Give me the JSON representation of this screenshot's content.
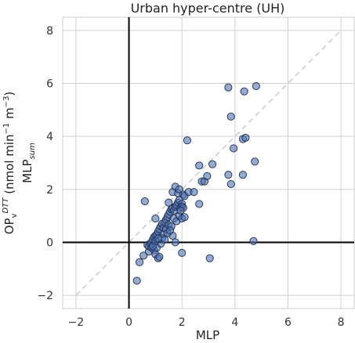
{
  "chart_data": {
    "type": "scatter",
    "title": "Urban hyper-centre (UH)",
    "xlabel": "MLP",
    "ylabel": {
      "line1_base": "OP",
      "line1_sub": "v",
      "line1_sup": "DTT",
      "line1_units": " (nmol min",
      "line1_units_sup": "−1",
      "line1_units_mid": " m",
      "line1_units_sup2": "−3",
      "line1_units_end": ")",
      "line2_base": "MLP",
      "line2_sub": "sum"
    },
    "xlim": [
      -2.5,
      8.5
    ],
    "ylim": [
      -2.5,
      8.5
    ],
    "xticks": [
      -2,
      0,
      2,
      4,
      6,
      8
    ],
    "yticks": [
      -2,
      0,
      2,
      4,
      6,
      8
    ],
    "grid": true,
    "reference_lines": {
      "x_zero": true,
      "y_zero": true,
      "identity_dashed": [
        -2,
        8
      ]
    },
    "colors": {
      "marker_fill": "#4c72b0",
      "marker_edge": "#1f2d4d",
      "grid": "#d0d0d0",
      "identity": "#cccccc",
      "axes": "#000000",
      "frame": "#cccccc"
    },
    "points": [
      {
        "x": 0.3,
        "y": -1.45
      },
      {
        "x": 0.4,
        "y": -0.75
      },
      {
        "x": 0.55,
        "y": -0.5
      },
      {
        "x": 0.75,
        "y": -0.35
      },
      {
        "x": 0.6,
        "y": 1.55
      },
      {
        "x": 1.0,
        "y": 0.9
      },
      {
        "x": 0.7,
        "y": -0.1
      },
      {
        "x": 0.75,
        "y": -0.15
      },
      {
        "x": 0.8,
        "y": -0.05
      },
      {
        "x": 0.85,
        "y": 0.0
      },
      {
        "x": 0.9,
        "y": 0.1
      },
      {
        "x": 0.95,
        "y": 0.2
      },
      {
        "x": 1.0,
        "y": 0.25
      },
      {
        "x": 1.05,
        "y": 0.3
      },
      {
        "x": 0.85,
        "y": -0.2
      },
      {
        "x": 0.95,
        "y": -0.3
      },
      {
        "x": 1.0,
        "y": -0.45
      },
      {
        "x": 1.1,
        "y": -0.6
      },
      {
        "x": 1.15,
        "y": -0.55
      },
      {
        "x": 1.05,
        "y": -0.2
      },
      {
        "x": 1.1,
        "y": 0.4
      },
      {
        "x": 1.15,
        "y": 0.5
      },
      {
        "x": 1.2,
        "y": 0.6
      },
      {
        "x": 1.25,
        "y": 0.7
      },
      {
        "x": 1.3,
        "y": 0.55
      },
      {
        "x": 1.35,
        "y": 0.75
      },
      {
        "x": 1.4,
        "y": 0.85
      },
      {
        "x": 1.45,
        "y": 0.95
      },
      {
        "x": 1.5,
        "y": 1.05
      },
      {
        "x": 1.55,
        "y": 1.15
      },
      {
        "x": 1.6,
        "y": 1.25
      },
      {
        "x": 1.65,
        "y": 1.3
      },
      {
        "x": 1.7,
        "y": 1.2
      },
      {
        "x": 1.75,
        "y": 1.35
      },
      {
        "x": 1.8,
        "y": 1.4
      },
      {
        "x": 1.85,
        "y": 1.5
      },
      {
        "x": 1.9,
        "y": 1.6
      },
      {
        "x": 1.95,
        "y": 1.3
      },
      {
        "x": 2.0,
        "y": 1.45
      },
      {
        "x": 1.7,
        "y": 0.9
      },
      {
        "x": 1.8,
        "y": 0.8
      },
      {
        "x": 1.9,
        "y": 1.0
      },
      {
        "x": 2.0,
        "y": 0.9
      },
      {
        "x": 2.1,
        "y": 0.95
      },
      {
        "x": 1.3,
        "y": 0.3
      },
      {
        "x": 1.4,
        "y": 0.5
      },
      {
        "x": 1.5,
        "y": 0.65
      },
      {
        "x": 1.25,
        "y": 0.15
      },
      {
        "x": 1.6,
        "y": 0.6
      },
      {
        "x": 1.65,
        "y": 0.25
      },
      {
        "x": 1.75,
        "y": 0.0
      },
      {
        "x": 1.2,
        "y": -0.05
      },
      {
        "x": 1.35,
        "y": 0.1
      },
      {
        "x": 1.45,
        "y": 0.35
      },
      {
        "x": 1.55,
        "y": 0.45
      },
      {
        "x": 1.0,
        "y": 0.05
      },
      {
        "x": 0.9,
        "y": -0.15
      },
      {
        "x": 1.1,
        "y": 0.15
      },
      {
        "x": 1.5,
        "y": 1.5
      },
      {
        "x": 1.65,
        "y": 1.9
      },
      {
        "x": 1.75,
        "y": 2.1
      },
      {
        "x": 1.85,
        "y": 1.85
      },
      {
        "x": 1.9,
        "y": 2.0
      },
      {
        "x": 2.05,
        "y": 1.8
      },
      {
        "x": 2.1,
        "y": 1.75
      },
      {
        "x": 2.25,
        "y": 1.9
      },
      {
        "x": 2.45,
        "y": 1.9
      },
      {
        "x": 2.0,
        "y": 1.35
      },
      {
        "x": 2.05,
        "y": 1.3
      },
      {
        "x": 1.95,
        "y": 1.2
      },
      {
        "x": 2.2,
        "y": 3.85
      },
      {
        "x": 2.75,
        "y": 2.3
      },
      {
        "x": 2.85,
        "y": 2.3
      },
      {
        "x": 2.65,
        "y": 1.45
      },
      {
        "x": 2.95,
        "y": 2.5
      },
      {
        "x": 3.05,
        "y": -0.6
      },
      {
        "x": 2.0,
        "y": -0.4
      },
      {
        "x": 2.65,
        "y": 2.9
      },
      {
        "x": 3.15,
        "y": 2.95
      },
      {
        "x": 3.75,
        "y": 2.55
      },
      {
        "x": 3.85,
        "y": 2.2
      },
      {
        "x": 3.85,
        "y": 4.75
      },
      {
        "x": 3.75,
        "y": 5.85
      },
      {
        "x": 3.95,
        "y": 3.55
      },
      {
        "x": 4.3,
        "y": 3.9
      },
      {
        "x": 4.4,
        "y": 3.95
      },
      {
        "x": 4.3,
        "y": 2.55
      },
      {
        "x": 4.35,
        "y": 5.7
      },
      {
        "x": 4.8,
        "y": 5.9
      },
      {
        "x": 4.75,
        "y": 3.05
      },
      {
        "x": 4.7,
        "y": 0.05
      }
    ]
  }
}
